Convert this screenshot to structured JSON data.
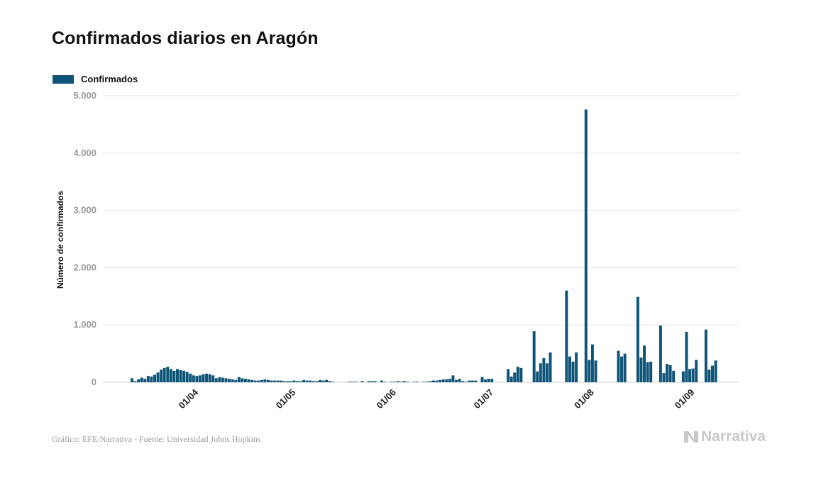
{
  "title": "Confirmados diarios en Aragón",
  "source": "Gráfico: EFE/Narrativa - Fuente: Universidad Johns Hopkins",
  "brand": "Narrativa",
  "colors": {
    "bar": "#0e5478",
    "grid": "#e6e6e6",
    "ytick": "#9a9a9a"
  },
  "chart_data": {
    "type": "bar",
    "title": "Confirmados diarios en Aragón",
    "xlabel": "",
    "ylabel": "Número de confirmados",
    "ylim": [
      0,
      5000
    ],
    "yticks": [
      "0",
      "1.000",
      "2.000",
      "3.000",
      "4.000",
      "5.000"
    ],
    "xticks": [
      "01/04",
      "01/05",
      "01/06",
      "01/07",
      "01/08",
      "01/09"
    ],
    "grid": true,
    "legend_position": "top-left",
    "start_date": "2020-03-13",
    "series": [
      {
        "name": "Confirmados",
        "values": [
          70,
          20,
          50,
          80,
          60,
          110,
          100,
          130,
          170,
          220,
          250,
          270,
          230,
          200,
          230,
          210,
          200,
          180,
          150,
          120,
          110,
          120,
          140,
          150,
          140,
          120,
          70,
          90,
          80,
          70,
          60,
          50,
          40,
          90,
          70,
          60,
          50,
          40,
          30,
          30,
          40,
          50,
          40,
          30,
          30,
          30,
          30,
          20,
          20,
          20,
          30,
          20,
          20,
          40,
          30,
          30,
          20,
          20,
          40,
          30,
          40,
          20,
          10,
          0,
          0,
          0,
          0,
          10,
          10,
          10,
          0,
          20,
          0,
          20,
          20,
          20,
          0,
          30,
          10,
          0,
          10,
          10,
          20,
          10,
          20,
          10,
          0,
          10,
          10,
          0,
          10,
          10,
          20,
          30,
          30,
          40,
          50,
          50,
          60,
          120,
          40,
          60,
          20,
          10,
          30,
          30,
          30,
          0,
          90,
          50,
          60,
          60,
          0,
          0,
          0,
          0,
          230,
          100,
          170,
          270,
          250,
          0,
          0,
          0,
          890,
          190,
          330,
          420,
          330,
          520,
          0,
          0,
          0,
          0,
          1600,
          450,
          360,
          520,
          0,
          0,
          4760,
          390,
          660,
          380,
          0,
          0,
          0,
          0,
          0,
          0,
          550,
          450,
          500,
          0,
          0,
          0,
          1490,
          430,
          640,
          350,
          360,
          0,
          0,
          990,
          160,
          320,
          300,
          200,
          0,
          0,
          190,
          880,
          230,
          240,
          390,
          0,
          0,
          920,
          220,
          290,
          380
        ]
      }
    ]
  }
}
